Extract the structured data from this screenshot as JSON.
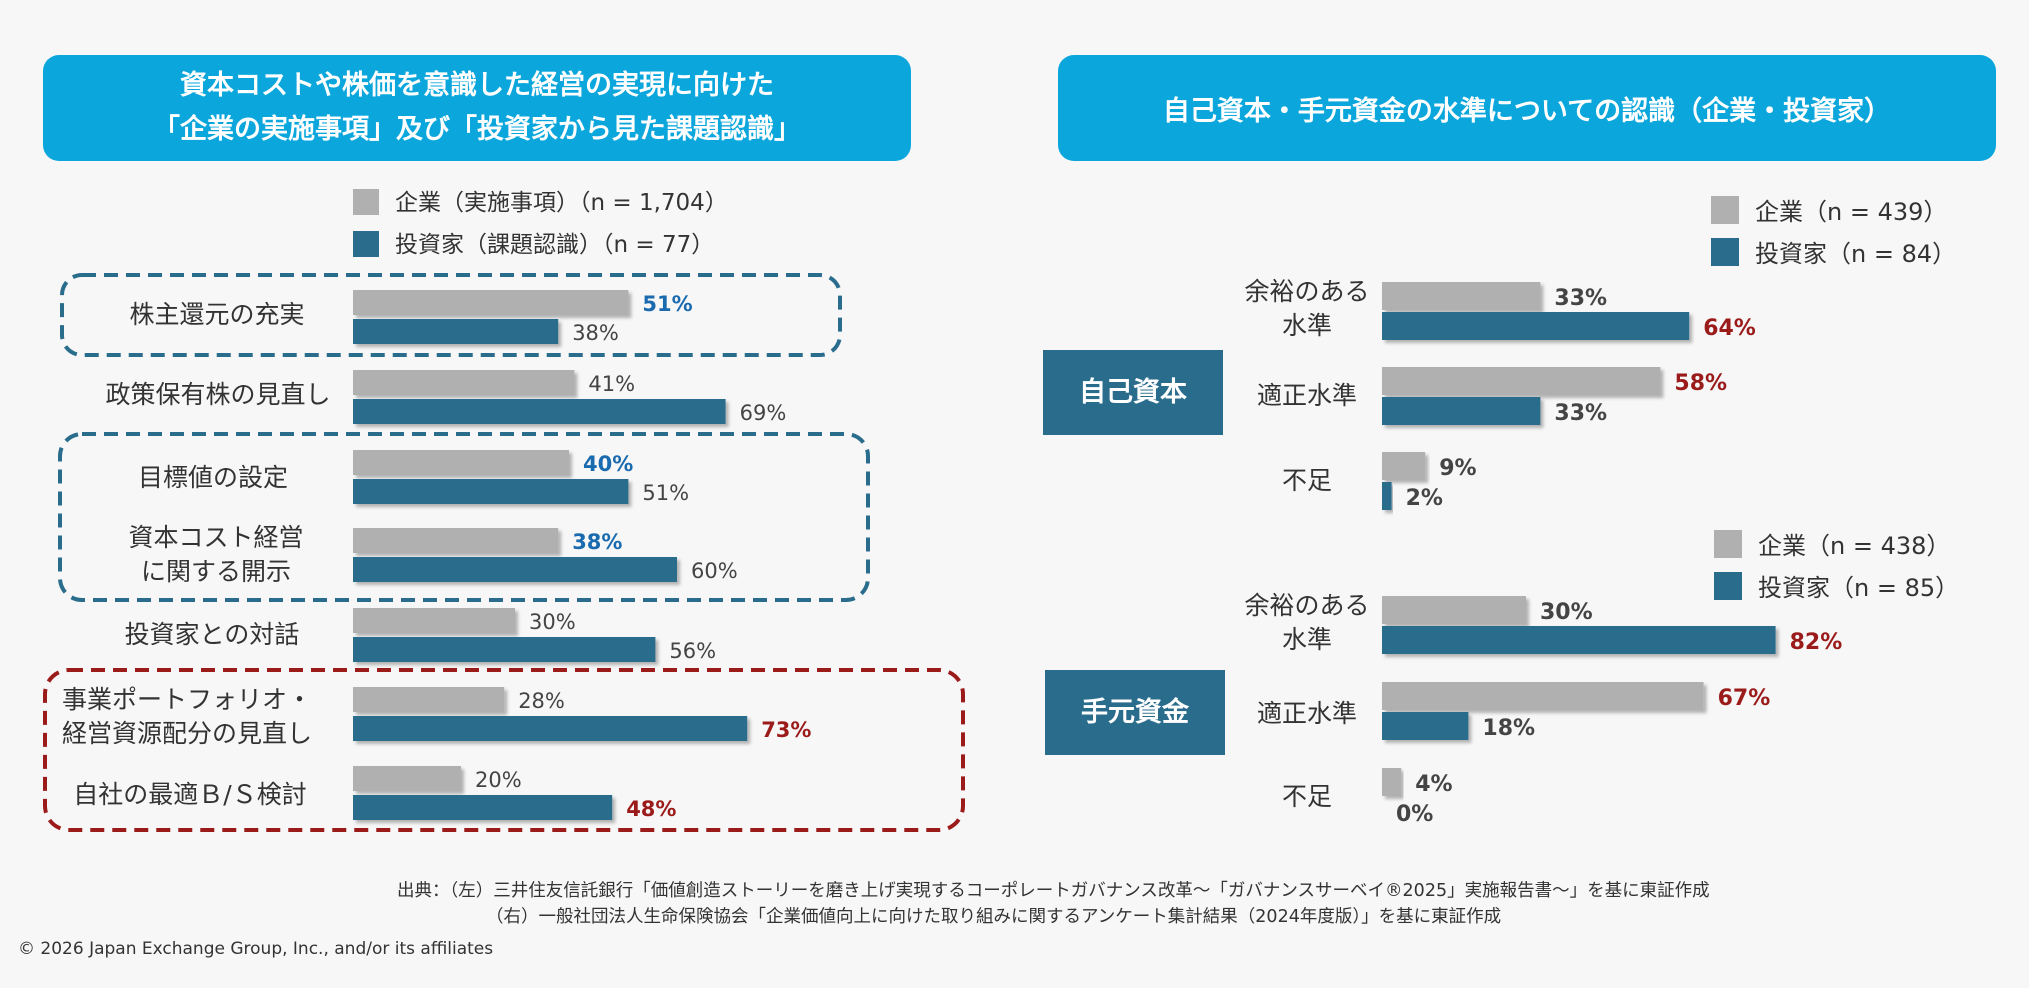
{
  "left_title_line1": "資本コストや株価を意識した経営の実現に向けた",
  "left_title_line2": "「企業の実施事項」及び「投資家から見た課題認識」",
  "right_title": "自己資本・手元資金の水準についての認識（企業・投資家）",
  "colors": {
    "company": "#b0b0b0",
    "investor": "#2a6c8c",
    "highlight_blue": "#1a6aaf",
    "highlight_red": "#9b1b1b",
    "header": "#0aa6dc"
  },
  "chart_data": [
    {
      "type": "bar",
      "orientation": "horizontal",
      "categories": [
        [
          "株主還元の充実"
        ],
        [
          "政策保有株の見直し"
        ],
        [
          "目標値の設定"
        ],
        [
          "資本コスト経営",
          "に関する開示"
        ],
        [
          "投資家との対話"
        ],
        [
          "事業ポートフォリオ・",
          "経営資源配分の見直し"
        ],
        [
          "自社の最適Ｂ/Ｓ検討"
        ]
      ],
      "series": [
        {
          "name": "企業（実施事項）（n = 1,704）",
          "values": [
            51,
            41,
            40,
            38,
            30,
            28,
            20
          ],
          "labels": [
            "51%",
            "41%",
            "40%",
            "38%",
            "30%",
            "28%",
            "20%"
          ]
        },
        {
          "name": "投資家（課題認識）（n = 77）",
          "values": [
            38,
            69,
            51,
            60,
            56,
            73,
            48
          ],
          "labels": [
            "38%",
            "69%",
            "51%",
            "60%",
            "56%",
            "73%",
            "48%"
          ]
        }
      ]
    },
    {
      "type": "bar",
      "orientation": "horizontal",
      "group": "自己資本",
      "categories": [
        [
          "余裕のある",
          "水準"
        ],
        [
          "適正水準"
        ],
        [
          "不足"
        ]
      ],
      "series": [
        {
          "name": "企業（n = 439）",
          "values": [
            33,
            58,
            9
          ],
          "labels": [
            "33%",
            "58%",
            "9%"
          ]
        },
        {
          "name": "投資家（n = 84）",
          "values": [
            64,
            33,
            2
          ],
          "labels": [
            "64%",
            "33%",
            "2%"
          ]
        }
      ]
    },
    {
      "type": "bar",
      "orientation": "horizontal",
      "group": "手元資金",
      "categories": [
        [
          "余裕のある",
          "水準"
        ],
        [
          "適正水準"
        ],
        [
          "不足"
        ]
      ],
      "series": [
        {
          "name": "企業（n = 438）",
          "values": [
            30,
            67,
            4
          ],
          "labels": [
            "30%",
            "67%",
            "4%"
          ]
        },
        {
          "name": "投資家（n = 85）",
          "values": [
            82,
            18,
            0
          ],
          "labels": [
            "82%",
            "18%",
            "0%"
          ]
        }
      ]
    }
  ],
  "source_line1": "出典：（左）三井住友信託銀行「価値創造ストーリーを磨き上げ実現するコーポレートガバナンス改革～「ガバナンスサーベイ®2025」実施報告書～」を基に東証作成",
  "source_line2": "（右）一般社団法人生命保険協会「企業価値向上に向けた取り組みに関するアンケート集計結果（2024年度版）」を基に東証作成",
  "copyright": "© 2026 Japan Exchange Group, Inc., and/or its affiliates"
}
